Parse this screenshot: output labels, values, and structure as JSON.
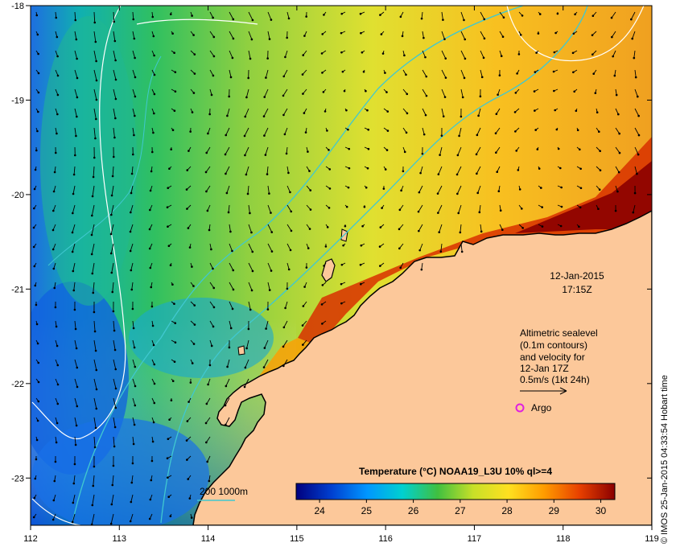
{
  "map": {
    "lon_range": [
      112,
      119
    ],
    "lat_range": [
      -23.5,
      -18
    ],
    "lon_ticks": [
      "112",
      "113",
      "114",
      "115",
      "116",
      "117",
      "118",
      "119"
    ],
    "lat_ticks": [
      "-18",
      "-19",
      "-20",
      "-21",
      "-22",
      "-23"
    ],
    "land_color": "#fcc89a",
    "coast_color": "#000000"
  },
  "timestamp": {
    "date": "12-Jan-2015",
    "time": "17:15Z"
  },
  "annotation": {
    "lines": [
      "Altimetric sealevel",
      "(0.1m contours)",
      "and velocity for",
      "12-Jan 17Z",
      "0.5m/s (1kt 24h)"
    ]
  },
  "argo": {
    "label": "Argo",
    "color": "#e020e0"
  },
  "bathymetry_legend": {
    "label": "200  1000m",
    "color": "#40c8d0"
  },
  "colorbar": {
    "title": "Temperature (°C) NOAA19_L3U 10% ql>=4",
    "ticks": [
      "24",
      "25",
      "26",
      "27",
      "28",
      "29",
      "30"
    ],
    "min": 23.5,
    "max": 30.3,
    "stops": [
      "#00007f",
      "#0040d0",
      "#0096ff",
      "#00d0d0",
      "#40c040",
      "#c8e028",
      "#ffe020",
      "#ff9c00",
      "#e84000",
      "#8b0000"
    ]
  },
  "credit": "© IMOS 25-Jan-2015 04:33:54 Hobart time"
}
